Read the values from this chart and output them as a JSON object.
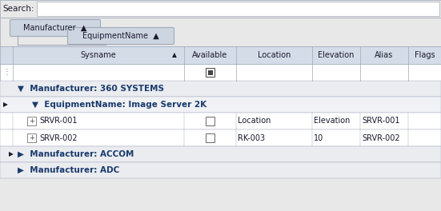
{
  "bg_color": "#e8e8e8",
  "white": "#ffffff",
  "header_bg": "#d4dce8",
  "group_bg": "#eaecf0",
  "subgroup_bg": "#f0f2f5",
  "row_white": "#ffffff",
  "border_color": "#a0a8b8",
  "text_dark": "#1a1a2e",
  "blue_text": "#1a3a6b",
  "pill_bg": "#cdd5e0",
  "search_label": "Search:",
  "pill1_text": "Manufacturer  ▲",
  "pill2_text": "EquipmentName  ▲",
  "manufacturer_360": "Manufacturer: 360 SYSTEMS",
  "equipment_name": "EquipmentName: Image Server 2K",
  "manufacturer_accom": "Manufacturer: ACCOM",
  "manufacturer_adc": "Manufacturer: ADC",
  "rows": [
    {
      "sysname": "SRVR-001",
      "location": "Location",
      "elevation": "Elevation",
      "alias": "SRVR-001"
    },
    {
      "sysname": "SRVR-002",
      "location": "RK-003",
      "elevation": "10",
      "alias": "SRVR-002"
    }
  ]
}
